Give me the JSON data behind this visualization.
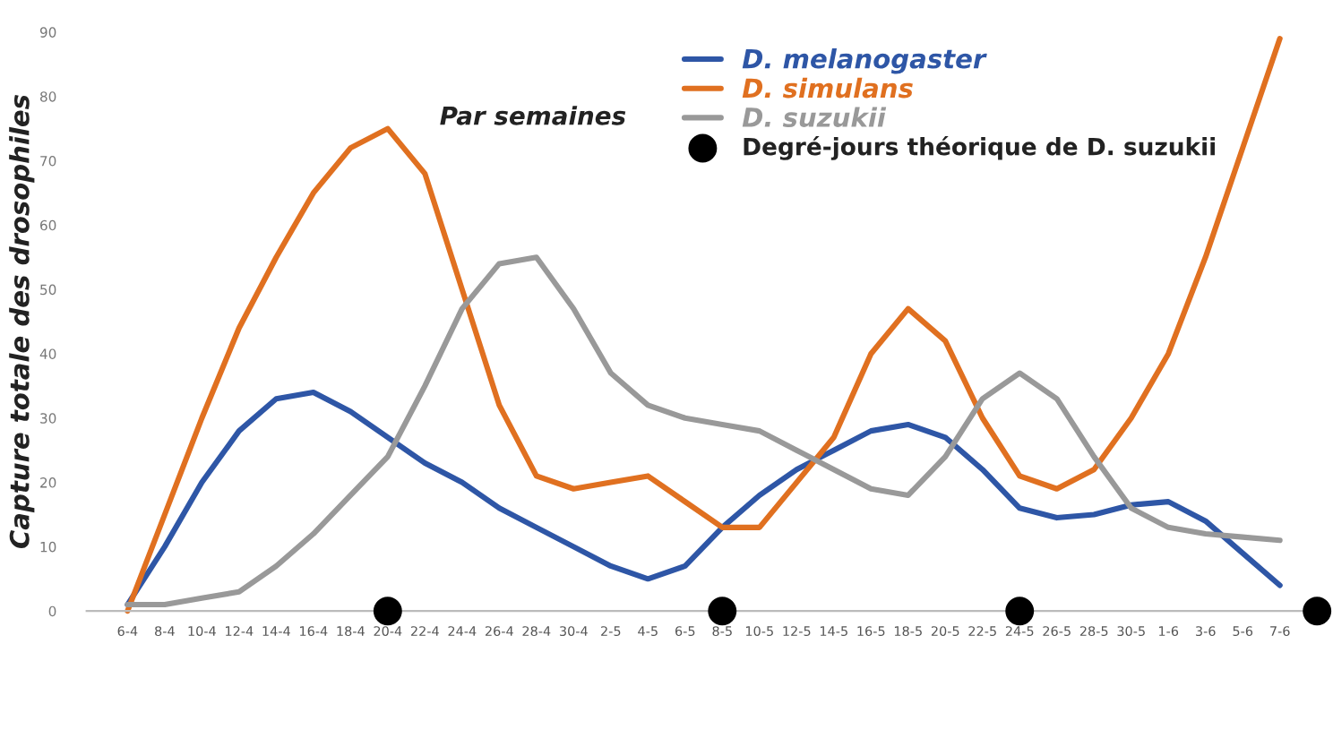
{
  "chart_data": {
    "type": "line",
    "title": "Par semaines",
    "ylabel": "Capture totale des drosophiles",
    "categories": [
      "6-4",
      "8-4",
      "10-4",
      "12-4",
      "14-4",
      "16-4",
      "18-4",
      "20-4",
      "22-4",
      "24-4",
      "26-4",
      "28-4",
      "30-4",
      "2-5",
      "4-5",
      "6-5",
      "8-5",
      "10-5",
      "12-5",
      "14-5",
      "16-5",
      "18-5",
      "20-5",
      "22-5",
      "24-5",
      "26-5",
      "28-5",
      "30-5",
      "1-6",
      "3-6",
      "5-6",
      "7-6",
      null
    ],
    "series": [
      {
        "name": "D. melanogaster",
        "color": "#2e56a6",
        "values": [
          1,
          10,
          20,
          28,
          33,
          34,
          31,
          27,
          23,
          20,
          16,
          13,
          10,
          7,
          5,
          7,
          13,
          18,
          22,
          25,
          28,
          29,
          27,
          22,
          16,
          14.5,
          15,
          16.5,
          17,
          14,
          9,
          4,
          null
        ]
      },
      {
        "name": "D. simulans",
        "color": "#e07020",
        "values": [
          0,
          15,
          30,
          44,
          55,
          65,
          72,
          75,
          68,
          50,
          32,
          21,
          19,
          20,
          21,
          17,
          13,
          13,
          20,
          27,
          40,
          47,
          42,
          30,
          21,
          19,
          22,
          30,
          40,
          55,
          72,
          89,
          null
        ]
      },
      {
        "name": "D. suzukii",
        "color": "#999999",
        "values": [
          1,
          1,
          2,
          3,
          7,
          12,
          18,
          24,
          35,
          47,
          54,
          55,
          47,
          37,
          32,
          30,
          29,
          28,
          25,
          22,
          19,
          18,
          24,
          33,
          37,
          33,
          24,
          16,
          13,
          12,
          11.5,
          11,
          null
        ]
      },
      {
        "name": "Degré-jours théorique de D. suzukii",
        "type": "scatter",
        "color": "#000000",
        "values": [
          null,
          null,
          null,
          null,
          null,
          null,
          null,
          0,
          null,
          null,
          null,
          null,
          null,
          null,
          null,
          null,
          0,
          null,
          null,
          null,
          null,
          null,
          null,
          null,
          0,
          null,
          null,
          null,
          null,
          null,
          null,
          null,
          0
        ]
      }
    ],
    "ylim": [
      0,
      90
    ],
    "yticks": [
      0,
      10,
      20,
      30,
      40,
      50,
      60,
      70,
      80,
      90
    ],
    "grid": false,
    "legend": "top right",
    "line_style": "solid"
  }
}
